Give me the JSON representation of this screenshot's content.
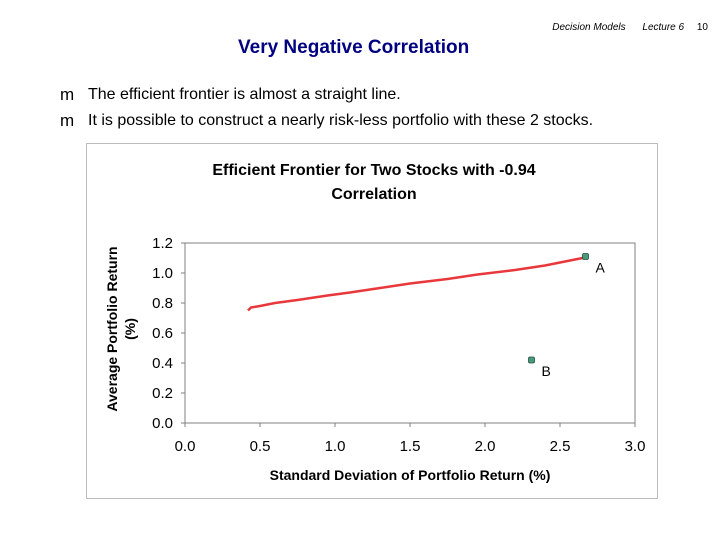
{
  "header": {
    "course": "Decision Models",
    "lecture": "Lecture 6",
    "page": "10"
  },
  "slide": {
    "title": "Very Negative Correlation",
    "bullets": [
      "The efficient frontier is almost a straight line.",
      "It is possible to construct a nearly risk-less portfolio with these 2 stocks."
    ],
    "bullet_icon": "m"
  },
  "chart_data": {
    "type": "line",
    "title": "Efficient Frontier for Two Stocks with -0.94 Correlation",
    "title_lines": [
      "Efficient Frontier for Two Stocks with -0.94",
      "Correlation"
    ],
    "xlabel": "Standard Deviation of Portfolio Return (%)",
    "ylabel": "Average Portfolio Return",
    "ylabel_unit": "(%)",
    "xlim": [
      0.0,
      3.0
    ],
    "ylim": [
      0.0,
      1.2
    ],
    "x_ticks": [
      0.0,
      0.5,
      1.0,
      1.5,
      2.0,
      2.5,
      3.0
    ],
    "x_tick_labels": [
      "0.0",
      "0.5",
      "1.0",
      "1.5",
      "2.0",
      "2.5",
      "3.0"
    ],
    "y_ticks": [
      0.0,
      0.2,
      0.4,
      0.6,
      0.8,
      1.0,
      1.2
    ],
    "y_tick_labels": [
      "0.0",
      "0.2",
      "0.4",
      "0.6",
      "0.8",
      "1.0",
      "1.2"
    ],
    "series": [
      {
        "name": "Efficient Frontier",
        "color": "#e8383b",
        "x": [
          0.42,
          0.44,
          0.5,
          0.6,
          0.75,
          0.95,
          1.1,
          1.3,
          1.5,
          1.75,
          1.95,
          2.2,
          2.4,
          2.55,
          2.65
        ],
        "y": [
          0.75,
          0.77,
          0.78,
          0.8,
          0.82,
          0.85,
          0.87,
          0.9,
          0.93,
          0.96,
          0.99,
          1.02,
          1.05,
          1.08,
          1.1
        ]
      }
    ],
    "points": [
      {
        "label": "A",
        "x": 2.67,
        "y": 1.11
      },
      {
        "label": "B",
        "x": 2.31,
        "y": 0.42
      }
    ],
    "point_color": "#4a9a7a",
    "grid": false
  }
}
